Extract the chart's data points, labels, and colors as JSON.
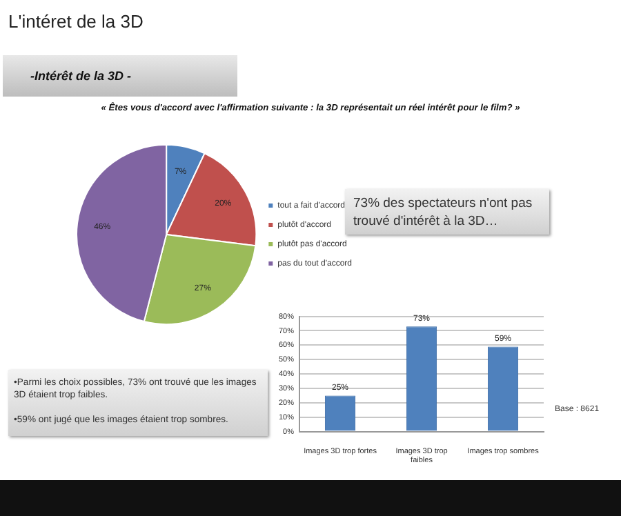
{
  "chart_data": [
    {
      "type": "pie",
      "title": "L'intéret de la 3D",
      "subtitle": "-Intérêt de la 3D -",
      "annotations": [
        "« Êtes vous d'accord avec l'affirmation suivante : la 3D représentait un réel intérêt pour le film? »"
      ],
      "categories": [
        "tout a fait d'accord",
        "plutôt d'accord",
        "plutôt pas d'accord",
        "pas du tout d'accord"
      ],
      "values": [
        7,
        20,
        27,
        46
      ],
      "value_labels": [
        "7%",
        "20%",
        "27%",
        "46%"
      ],
      "colors": [
        "#4f81bd",
        "#c0504d",
        "#9bbb59",
        "#8064a2"
      ],
      "legend": "right"
    },
    {
      "type": "bar",
      "annotations": [
        "73% des spectateurs n'ont pas trouvé d'intérêt à la 3D…",
        "•Parmi les choix possibles, 73% ont trouvé que les images 3D étaient trop faibles.\n\n•59% ont jugé que les images étaient trop sombres.",
        "Base : 8621"
      ],
      "categories": [
        "Images 3D trop fortes",
        "Images 3D trop faibles",
        "Images trop sombres"
      ],
      "values": [
        25,
        73,
        59
      ],
      "value_labels": [
        "25%",
        "73%",
        "59%"
      ],
      "color": "#4f81bd",
      "ylim": [
        0,
        80
      ],
      "yticks": [
        {
          "value": 0,
          "label": "0%"
        },
        {
          "value": 10,
          "label": "10%"
        },
        {
          "value": 20,
          "label": "20%"
        },
        {
          "value": 30,
          "label": "30%"
        },
        {
          "value": 40,
          "label": "40%"
        },
        {
          "value": 50,
          "label": "50%"
        },
        {
          "value": 60,
          "label": "60%"
        },
        {
          "value": 70,
          "label": "70%"
        },
        {
          "value": 80,
          "label": "80%"
        }
      ],
      "grid": "y",
      "legend": false
    }
  ]
}
